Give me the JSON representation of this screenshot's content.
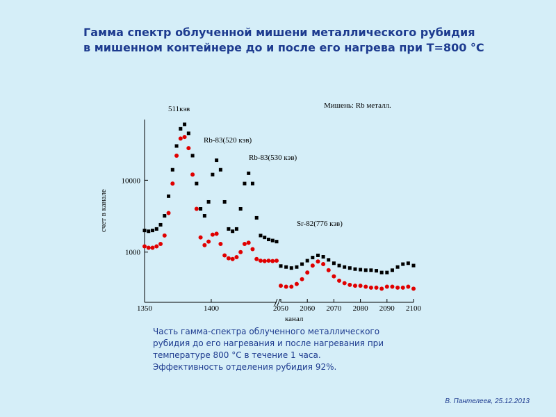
{
  "header": {
    "title": [
      "Гамма спектр облученной мишени металлического рубидия",
      "в мишенном контейнере до и после его нагрева при Т=800 °С"
    ]
  },
  "chart_data": {
    "type": "scatter",
    "xlabel": "канал",
    "ylabel": "счет в канале",
    "xlim": [
      1350,
      2100
    ],
    "xbreak": [
      1449,
      2050
    ],
    "xticks": [
      1350,
      1400,
      2050,
      2060,
      2070,
      2080,
      2090,
      2100
    ],
    "ylim": [
      200,
      70000
    ],
    "yticks": [
      1000,
      10000
    ],
    "log_y": true,
    "annotations": [
      "511кэв",
      "Rb-83(520 кэв)",
      "Rb-83(530 кэв)",
      "Sr-82(776 кэв)",
      "Мишень: Rb металл."
    ],
    "x": [
      1350,
      1353,
      1356,
      1359,
      1362,
      1365,
      1368,
      1371,
      1374,
      1377,
      1380,
      1383,
      1386,
      1389,
      1392,
      1395,
      1398,
      1401,
      1404,
      1407,
      1410,
      1413,
      1416,
      1419,
      1422,
      1425,
      1428,
      1431,
      1434,
      1437,
      1440,
      1443,
      1446,
      1449,
      2050,
      2052,
      2054,
      2056,
      2058,
      2060,
      2062,
      2064,
      2066,
      2068,
      2070,
      2072,
      2074,
      2076,
      2078,
      2080,
      2082,
      2084,
      2086,
      2088,
      2090,
      2092,
      2094,
      2096,
      2098,
      2100
    ],
    "series": [
      {
        "marker": "square",
        "color": "#000000",
        "values": [
          2000,
          1950,
          2000,
          2100,
          2400,
          3200,
          6000,
          14000,
          30000,
          52000,
          60000,
          45000,
          22000,
          9000,
          4000,
          3200,
          5000,
          12000,
          19000,
          14000,
          5000,
          2100,
          1950,
          2100,
          4000,
          9000,
          12500,
          9000,
          3000,
          1700,
          1600,
          1500,
          1450,
          1400,
          640,
          620,
          600,
          620,
          680,
          760,
          840,
          900,
          860,
          780,
          700,
          650,
          620,
          600,
          580,
          570,
          560,
          560,
          550,
          520,
          520,
          560,
          620,
          680,
          700,
          650
        ]
      },
      {
        "marker": "circle",
        "color": "#e00000",
        "values": [
          1200,
          1150,
          1150,
          1200,
          1300,
          1700,
          3500,
          9000,
          22000,
          38000,
          40000,
          28000,
          12000,
          4000,
          1600,
          1250,
          1400,
          1750,
          1800,
          1300,
          900,
          820,
          800,
          850,
          1000,
          1300,
          1350,
          1100,
          800,
          760,
          750,
          760,
          750,
          760,
          340,
          330,
          330,
          360,
          420,
          520,
          650,
          740,
          680,
          560,
          460,
          400,
          370,
          350,
          340,
          340,
          330,
          320,
          320,
          310,
          330,
          330,
          320,
          320,
          330,
          310
        ]
      }
    ]
  },
  "caption": [
    "Часть гамма-спектра облученного металлического",
    " рубидия до его нагревания и после нагревания при",
    "температуре 800 °С в течение 1 часа.",
    "Эффективность отделения рубидия 92%."
  ],
  "footer": "В. Пантелеев, 25.12.2013"
}
